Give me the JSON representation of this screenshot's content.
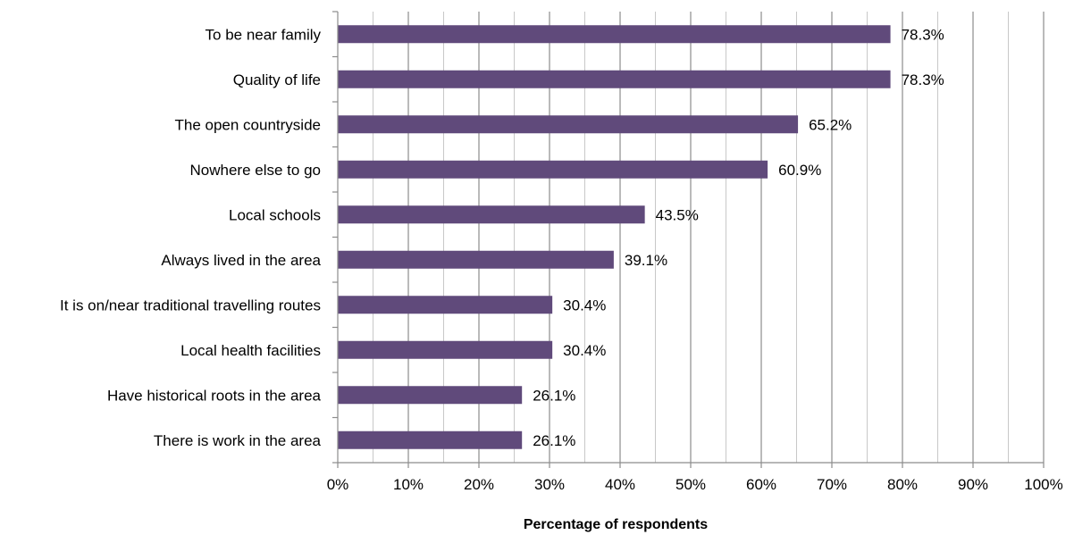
{
  "chart_data": {
    "type": "bar",
    "orientation": "horizontal",
    "categories": [
      "To be near family",
      "Quality of life",
      "The open countryside",
      "Nowhere else to go",
      "Local schools",
      "Always lived in the area",
      "It is on/near traditional travelling routes",
      "Local health facilities",
      "Have historical roots in the area",
      "There is work in the area"
    ],
    "values": [
      78.3,
      78.3,
      65.2,
      60.9,
      43.5,
      39.1,
      30.4,
      30.4,
      26.1,
      26.1
    ],
    "value_labels": [
      "78.3%",
      "78.3%",
      "65.2%",
      "60.9%",
      "43.5%",
      "39.1%",
      "30.4%",
      "30.4%",
      "26.1%",
      "26.1%"
    ],
    "title": "",
    "xlabel": "Percentage of respondents",
    "ylabel": "",
    "xlim": [
      0,
      100
    ],
    "x_ticks": [
      "0%",
      "10%",
      "20%",
      "30%",
      "40%",
      "50%",
      "60%",
      "70%",
      "80%",
      "90%",
      "100%"
    ],
    "grid": "vertical major and minor gridlines",
    "legend": "none",
    "colors": {
      "bar": "#604a7b",
      "major_grid": "#8c8c8c",
      "minor_grid": "#c8c8c8",
      "axis": "#8c8c8c"
    }
  }
}
